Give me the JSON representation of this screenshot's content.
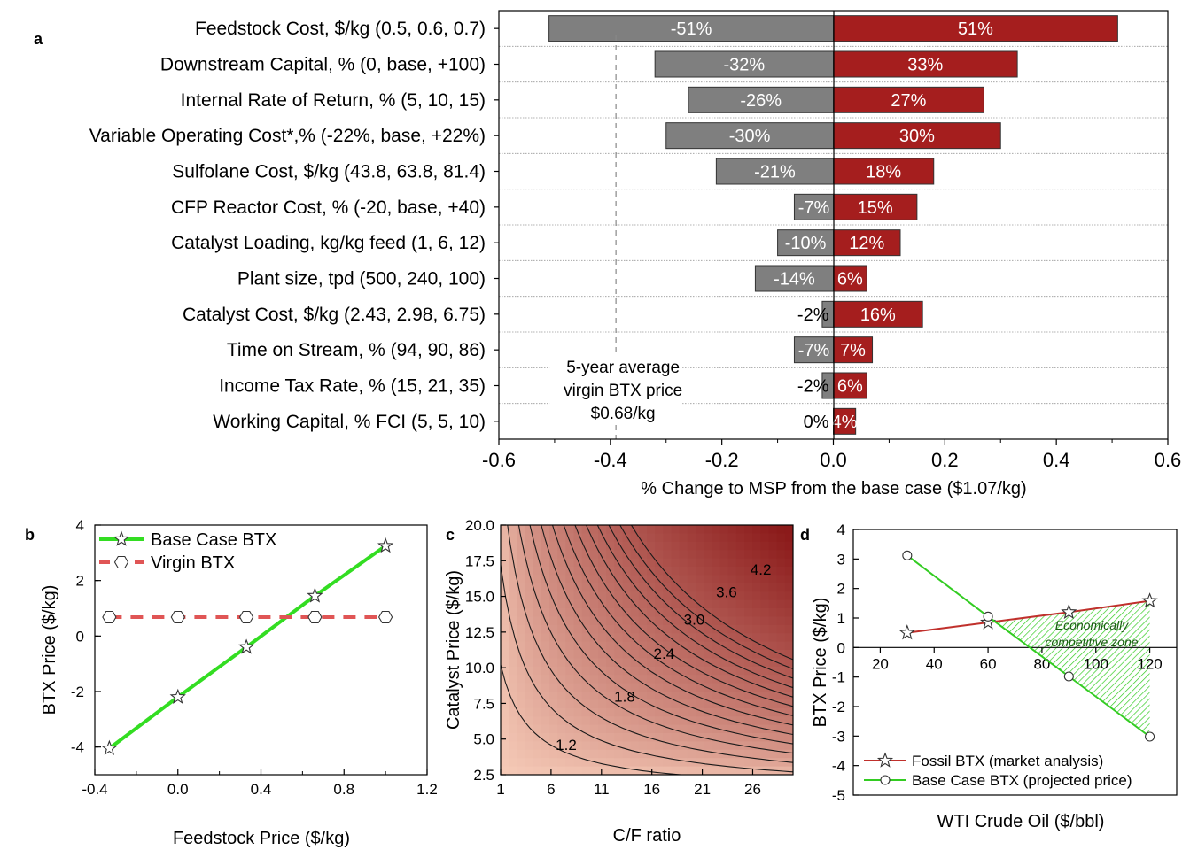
{
  "panels": {
    "a": {
      "label": "a",
      "chart_data": {
        "type": "bar",
        "orientation": "horizontal",
        "subtype": "tornado",
        "xlabel": "% Change to MSP from the base case ($1.07/kg)",
        "xlim": [
          -0.6,
          0.6
        ],
        "xticks": [
          -0.6,
          -0.4,
          -0.2,
          0.0,
          0.2,
          0.4,
          0.6
        ],
        "xtick_labels": [
          "-0.6",
          "-0.4",
          "-0.2",
          "0.0",
          "0.2",
          "0.4",
          "0.6"
        ],
        "categories": [
          "Feedstock Cost, $/kg (0.5, 0.6, 0.7)",
          "Downstream Capital, % (0, base, +100)",
          "Internal Rate of Return, % (5, 10, 15)",
          "Variable Operating Cost*,% (-22%, base, +22%)",
          "Sulfolane Cost, $/kg (43.8, 63.8, 81.4)",
          "CFP Reactor Cost, % (-20, base, +40)",
          "Catalyst Loading, kg/kg feed (1, 6, 12)",
          "Plant size, tpd (500, 240, 100)",
          "Catalyst Cost, $/kg (2.43, 2.98, 6.75)",
          "Time on Stream, % (94, 90, 86)",
          "Income Tax Rate, % (15, 21, 35)",
          "Working Capital, % FCI (5, 5, 10)"
        ],
        "series": [
          {
            "color": "#7f7f7f",
            "values": [
              -0.51,
              -0.32,
              -0.26,
              -0.3,
              -0.21,
              -0.07,
              -0.1,
              -0.14,
              -0.02,
              -0.07,
              -0.02,
              0.0
            ],
            "labels": [
              "-51%",
              "-32%",
              "-26%",
              "-30%",
              "-21%",
              "-7%",
              "-10%",
              "-14%",
              "-2%",
              "-7%",
              "-2%",
              "0%"
            ]
          },
          {
            "color": "#a51e1e",
            "values": [
              0.51,
              0.33,
              0.27,
              0.3,
              0.18,
              0.15,
              0.12,
              0.06,
              0.16,
              0.07,
              0.06,
              0.04
            ],
            "labels": [
              "51%",
              "33%",
              "27%",
              "30%",
              "18%",
              "15%",
              "12%",
              "6%",
              "16%",
              "7%",
              "6%",
              "4%"
            ]
          }
        ],
        "reference_line": {
          "x": -0.39,
          "style": "dashed",
          "annotation": [
            "5-year average",
            "virgin BTX price",
            "$0.68/kg"
          ]
        },
        "grid": "horizontal dotted separators"
      }
    },
    "b": {
      "label": "b",
      "chart_data": {
        "type": "line",
        "xlabel": "Feedstock Price ($/kg)",
        "ylabel": "BTX Price ($/kg)",
        "xlim": [
          -0.4,
          1.2
        ],
        "ylim": [
          -5,
          4
        ],
        "xticks": [
          -0.4,
          0.0,
          0.4,
          0.8,
          1.2
        ],
        "xtick_labels": [
          "-0.4",
          "0.0",
          "0.4",
          "0.8",
          "1.2"
        ],
        "yticks": [
          -4,
          -2,
          0,
          2,
          4
        ],
        "ytick_labels": [
          "-4",
          "-2",
          "0",
          "2",
          "4"
        ],
        "legend_position": "top-left",
        "series": [
          {
            "name": "Base Case BTX",
            "color": "#33dd22",
            "line": "solid",
            "marker": "star",
            "x": [
              -0.33,
              0.0,
              0.33,
              0.66,
              1.0
            ],
            "y": [
              -4.05,
              -2.2,
              -0.4,
              1.45,
              3.25
            ]
          },
          {
            "name": "Virgin BTX",
            "color": "#e05555",
            "line": "dashed",
            "marker": "hexagon",
            "x": [
              -0.33,
              0.0,
              0.33,
              0.66,
              1.0
            ],
            "y": [
              0.68,
              0.68,
              0.68,
              0.68,
              0.68
            ]
          }
        ]
      }
    },
    "c": {
      "label": "c",
      "chart_data": {
        "type": "heatmap",
        "subtype": "contour",
        "xlabel": "C/F ratio",
        "ylabel": "Catalyst Price ($/kg)",
        "xlim": [
          1,
          30
        ],
        "ylim": [
          2.5,
          20.0
        ],
        "xticks": [
          1,
          6,
          11,
          16,
          21,
          26
        ],
        "xtick_labels": [
          "1",
          "6",
          "11",
          "16",
          "21",
          "26"
        ],
        "yticks": [
          2.5,
          5.0,
          7.5,
          10.0,
          12.5,
          15.0,
          17.5,
          20.0
        ],
        "ytick_labels": [
          "2.5",
          "5.0",
          "7.5",
          "10.0",
          "12.5",
          "15.0",
          "17.5",
          "20.0"
        ],
        "colormap": [
          "#f6cbb8",
          "#8b1a1a"
        ],
        "contour_labels": [
          {
            "text": "1.2",
            "x": 7.5,
            "y": 4.6
          },
          {
            "text": "1.8",
            "x": 13.3,
            "y": 8.0
          },
          {
            "text": "2.4",
            "x": 17.2,
            "y": 11.0
          },
          {
            "text": "3.0",
            "x": 20.2,
            "y": 13.4
          },
          {
            "text": "3.6",
            "x": 23.4,
            "y": 15.3
          },
          {
            "text": "4.2",
            "x": 26.8,
            "y": 16.9
          }
        ]
      }
    },
    "d": {
      "label": "d",
      "chart_data": {
        "type": "line",
        "xlabel": "WTI Crude Oil ($/bbl)",
        "ylabel": "BTX Price ($/kg)",
        "xlim": [
          10,
          130
        ],
        "ylim": [
          -5,
          4
        ],
        "xticks": [
          20,
          40,
          60,
          80,
          100,
          120
        ],
        "xtick_labels": [
          "20",
          "40",
          "60",
          "80",
          "100",
          "120"
        ],
        "yticks": [
          -5,
          -4,
          -3,
          -2,
          -1,
          0,
          1,
          2,
          3,
          4
        ],
        "ytick_labels": [
          "-5",
          "-4",
          "-3",
          "-2",
          "-1",
          "0",
          "1",
          "2",
          "3",
          "4"
        ],
        "legend_position": "bottom",
        "series": [
          {
            "name": "Fossil BTX (market analysis)",
            "color": "#c0302c",
            "marker": "star",
            "x": [
              30,
              60,
              90,
              120
            ],
            "y": [
              0.5,
              0.85,
              1.2,
              1.58
            ]
          },
          {
            "name": "Base Case BTX (projected price)",
            "color": "#33cc22",
            "marker": "circle",
            "x": [
              30,
              60,
              90,
              120
            ],
            "y": [
              3.12,
              1.05,
              -0.98,
              -3.02
            ]
          }
        ],
        "shaded_region": {
          "label": [
            "Economically",
            "competitive zone"
          ],
          "color": "#33cc22",
          "pattern": "hatched"
        }
      }
    }
  }
}
